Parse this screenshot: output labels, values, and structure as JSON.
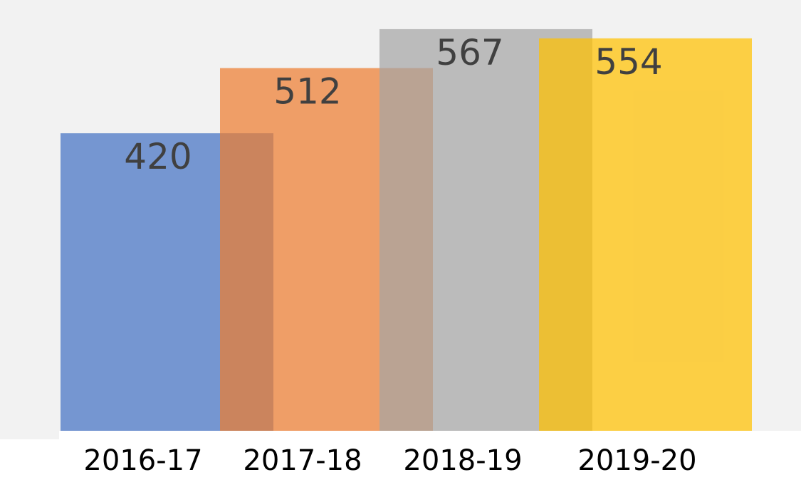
{
  "colors": {
    "plot_background": "#f2f2f2",
    "page_background": "#ffffff",
    "label_text": "#404040",
    "tick_text": "#000000"
  },
  "chart_data": {
    "type": "bar",
    "title": "",
    "xlabel": "",
    "ylabel": "",
    "categories": [
      "2016-17",
      "2017-18",
      "2018-19",
      "2019-20"
    ],
    "values": [
      420,
      512,
      567,
      554
    ],
    "bar_colors": [
      "#4472c4",
      "#ed7d31",
      "#a5a5a5",
      "#ffc000"
    ],
    "bar_opacity": 0.72,
    "overlapping_bars": true,
    "data_labels": [
      "420",
      "512",
      "567",
      "554"
    ],
    "ylim": [
      0,
      580
    ],
    "grid": false,
    "legend": "none"
  }
}
